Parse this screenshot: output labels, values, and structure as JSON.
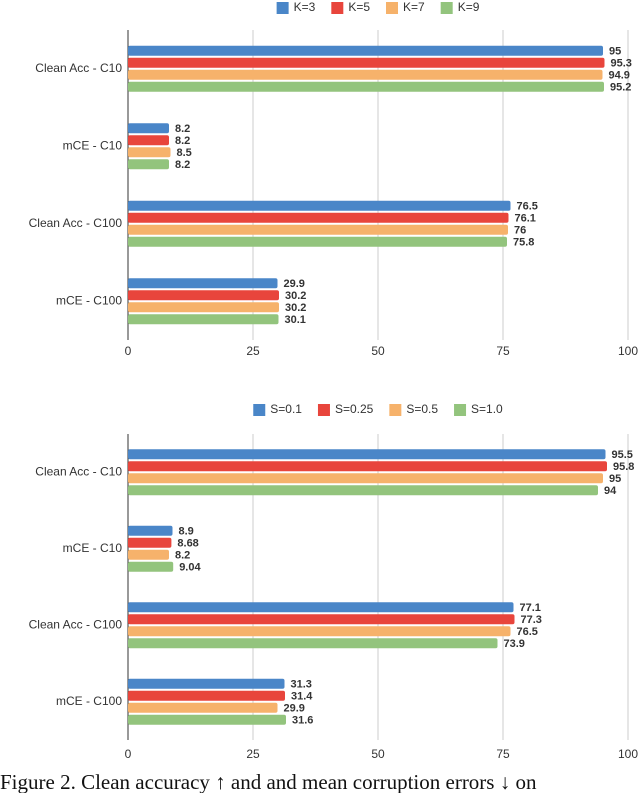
{
  "chart_data": [
    {
      "type": "bar",
      "orientation": "horizontal",
      "categories": [
        "Clean Acc - C10",
        "mCE - C10",
        "Clean Acc - C100",
        "mCE - C100"
      ],
      "series": [
        {
          "name": "K=3",
          "color": "#4a86c8",
          "values": [
            95,
            8.2,
            76.5,
            29.9
          ]
        },
        {
          "name": "K=5",
          "color": "#e8453c",
          "values": [
            95.3,
            8.2,
            76.1,
            30.2
          ]
        },
        {
          "name": "K=7",
          "color": "#f6b26b",
          "values": [
            94.9,
            8.5,
            76,
            30.2
          ]
        },
        {
          "name": "K=9",
          "color": "#93c47d",
          "values": [
            95.2,
            8.2,
            75.8,
            30.1
          ]
        }
      ],
      "xlim": [
        0,
        100
      ],
      "xticks": [
        0,
        25,
        50,
        75,
        100
      ],
      "grid": true,
      "legend": "top"
    },
    {
      "type": "bar",
      "orientation": "horizontal",
      "categories": [
        "Clean Acc - C10",
        "mCE - C10",
        "Clean Acc - C100",
        "mCE - C100"
      ],
      "series": [
        {
          "name": "S=0.1",
          "color": "#4a86c8",
          "values": [
            95.5,
            8.9,
            77.1,
            31.3
          ]
        },
        {
          "name": "S=0.25",
          "color": "#e8453c",
          "values": [
            95.8,
            8.68,
            77.3,
            31.4
          ]
        },
        {
          "name": "S=0.5",
          "color": "#f6b26b",
          "values": [
            95,
            8.2,
            76.5,
            29.9
          ]
        },
        {
          "name": "S=1.0",
          "color": "#93c47d",
          "values": [
            94,
            9.04,
            73.9,
            31.6
          ]
        }
      ],
      "xlim": [
        0,
        100
      ],
      "xticks": [
        0,
        25,
        50,
        75,
        100
      ],
      "grid": true,
      "legend": "top"
    }
  ],
  "caption": "Figure 2. Clean accuracy ↑ and and mean corruption errors ↓ on"
}
